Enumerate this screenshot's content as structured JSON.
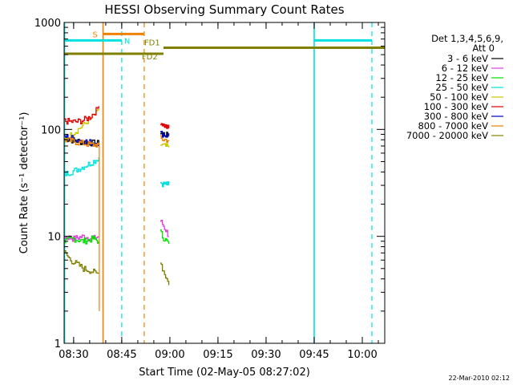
{
  "chart_data": {
    "type": "line",
    "title": "HESSI Observing Summary Count Rates",
    "xlabel": "Start Time (02-May-05 08:27:02)",
    "ylabel": "Count Rate (s⁻¹ detector⁻¹)",
    "yscale": "log",
    "ylim": [
      1,
      1000
    ],
    "xlim": [
      "08:27:02",
      "10:07:00"
    ],
    "x_ticks": [
      "08:30",
      "08:45",
      "09:00",
      "09:15",
      "09:30",
      "09:45",
      "10:00"
    ],
    "y_ticks": [
      "1",
      "10",
      "100",
      "1000"
    ],
    "timestamp": "22-Mar-2010 02:12",
    "legend": {
      "header_line1": "Det 1,3,4,5,6,9,",
      "header_line2": "Att 0",
      "position": "right"
    },
    "series": [
      {
        "name": "3 - 6 keV",
        "color": "#000000",
        "segments": [
          {
            "x": [
              "08:27:10",
              "08:29",
              "08:31",
              "08:33",
              "08:35",
              "08:37",
              "08:37:50"
            ],
            "y": [
              82,
              80,
              78,
              76,
              75,
              74,
              74
            ]
          },
          {
            "x": [
              "08:57:00",
              "08:57:40",
              "08:58:20",
              "08:59:00",
              "08:59:40"
            ],
            "y": [
              95,
              92,
              90,
              88,
              87
            ]
          }
        ]
      },
      {
        "name": "6 - 12 keV",
        "color": "#e040e0",
        "segments": [
          {
            "x": [
              "08:27:10",
              "08:30",
              "08:33",
              "08:36",
              "08:37:50"
            ],
            "y": [
              10,
              9.5,
              10,
              9.5,
              10
            ]
          },
          {
            "x": [
              "08:57:00",
              "08:57:40",
              "08:58:20",
              "08:59:00",
              "08:59:40"
            ],
            "y": [
              14,
              13,
              12,
              11,
              10
            ]
          }
        ]
      },
      {
        "name": "12 - 25 keV",
        "color": "#00e000",
        "segments": [
          {
            "x": [
              "08:27:10",
              "08:30",
              "08:33",
              "08:36",
              "08:37:50"
            ],
            "y": [
              9,
              9.5,
              9,
              9.5,
              9
            ]
          },
          {
            "x": [
              "08:57:00",
              "08:57:40",
              "08:58:20",
              "08:59:00",
              "08:59:40"
            ],
            "y": [
              11,
              10,
              9.5,
              9,
              8.5
            ]
          }
        ]
      },
      {
        "name": "25 - 50 keV",
        "color": "#00e0e0",
        "segments": [
          {
            "x": [
              "08:27:10",
              "08:29",
              "08:31",
              "08:33",
              "08:35",
              "08:37",
              "08:37:50"
            ],
            "y": [
              38,
              40,
              42,
              45,
              48,
              52,
              55
            ]
          },
          {
            "x": [
              "08:57:00",
              "08:58:00",
              "08:59:00",
              "08:59:40"
            ],
            "y": [
              32,
              31,
              31,
              30
            ]
          }
        ]
      },
      {
        "name": "50 - 100 keV",
        "color": "#c8c800",
        "segments": [
          {
            "x": [
              "08:27:10",
              "08:29",
              "08:31",
              "08:33",
              "08:35",
              "08:37",
              "08:37:50"
            ],
            "y": [
              80,
              88,
              98,
              110,
              125,
              140,
              150
            ]
          },
          {
            "x": [
              "08:57:00",
              "08:58:00",
              "08:59:00",
              "08:59:40"
            ],
            "y": [
              72,
              70,
              69,
              68
            ]
          }
        ]
      },
      {
        "name": "100 - 300 keV",
        "color": "#e00000",
        "segments": [
          {
            "x": [
              "08:27:10",
              "08:29",
              "08:31",
              "08:33",
              "08:35",
              "08:37",
              "08:37:50"
            ],
            "y": [
              120,
              118,
              118,
              122,
              130,
              150,
              165
            ]
          },
          {
            "x": [
              "08:57:00",
              "08:58:00",
              "08:59:00",
              "08:59:40"
            ],
            "y": [
              118,
              110,
              105,
              102
            ]
          }
        ]
      },
      {
        "name": "300 - 800 keV",
        "color": "#0000c0",
        "segments": [
          {
            "x": [
              "08:27:10",
              "08:29",
              "08:31",
              "08:33",
              "08:35",
              "08:37",
              "08:37:50"
            ],
            "y": [
              86,
              84,
              80,
              78,
              76,
              75,
              74
            ]
          },
          {
            "x": [
              "08:57:00",
              "08:58:00",
              "08:59:00",
              "08:59:40"
            ],
            "y": [
              92,
              90,
              88,
              88
            ]
          }
        ]
      },
      {
        "name": "800 - 7000 keV",
        "color": "#f08000",
        "segments": [
          {
            "x": [
              "08:27:10",
              "08:29",
              "08:31",
              "08:33",
              "08:35",
              "08:37",
              "08:37:50"
            ],
            "y": [
              80,
              78,
              76,
              74,
              72,
              72,
              72
            ]
          },
          {
            "x": [
              "08:57:00",
              "08:58:00",
              "08:59:00",
              "08:59:40"
            ],
            "y": [
              82,
              80,
              80,
              79
            ]
          }
        ]
      },
      {
        "name": "7000 - 20000 keV",
        "color": "#808000",
        "segments": [
          {
            "x": [
              "08:27:10",
              "08:29",
              "08:31",
              "08:33",
              "08:35",
              "08:37",
              "08:37:50"
            ],
            "y": [
              7,
              6,
              5.5,
              5,
              4.8,
              4.5,
              4.5
            ]
          },
          {
            "x": [
              "08:57:00",
              "08:57:40",
              "08:58:20",
              "08:59:00",
              "08:59:40"
            ],
            "y": [
              6,
              5,
              4.5,
              4,
              3.5
            ]
          }
        ]
      }
    ],
    "flags": [
      {
        "name": "S",
        "color": "#f08000",
        "x_start": "08:39:10",
        "x_end": "08:52:00",
        "y": 780
      },
      {
        "name": "N",
        "color": "#00e0e0",
        "x_start": "08:27:02",
        "x_end": "08:45:00",
        "y": 680
      },
      {
        "name": "N",
        "color": "#00e0e0",
        "x_start": "09:45:00",
        "x_end": "10:03:00",
        "y": 680
      },
      {
        "name": "FD1",
        "color": "#808000",
        "x_start": "08:58:00",
        "x_end": "10:07:00",
        "y": 580
      },
      {
        "name": "FD2",
        "color": "#808000",
        "x_start": "08:27:02",
        "x_end": "08:58:00",
        "y": 510
      }
    ],
    "flag_labels": [
      "S",
      "N",
      "FD1",
      "FD2"
    ],
    "vertical_lines": [
      {
        "x": "08:27:10",
        "color": "#00e0e0",
        "style": "solid"
      },
      {
        "x": "08:39:10",
        "color": "#f08000",
        "style": "solid"
      },
      {
        "x": "08:45:00",
        "color": "#00e0e0",
        "style": "dashed"
      },
      {
        "x": "08:52:00",
        "color": "#f08000",
        "style": "dashed"
      },
      {
        "x": "09:45:00",
        "color": "#00e0e0",
        "style": "solid"
      },
      {
        "x": "10:03:00",
        "color": "#00e0e0",
        "style": "dashed"
      }
    ],
    "spikes": [
      {
        "x": "08:38:00",
        "y_low": 2,
        "y_high": 74,
        "color": "#f08000"
      }
    ]
  }
}
